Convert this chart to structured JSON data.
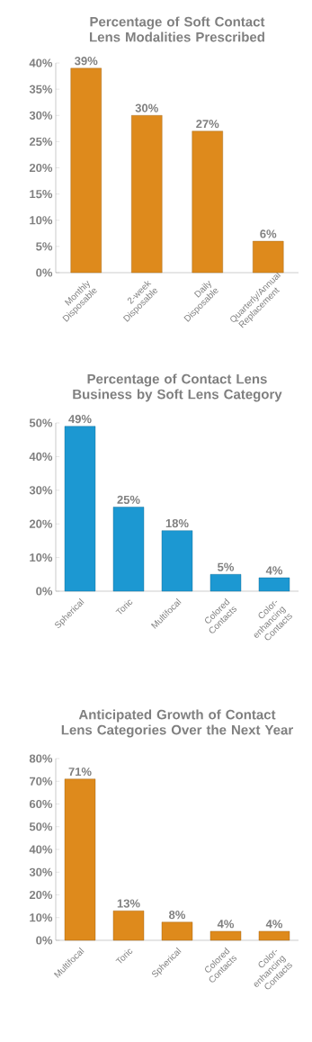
{
  "chart_data": [
    {
      "type": "bar",
      "title": "Percentage of Soft Contact Lens Modalities Prescribed",
      "categories": [
        "Monthly Disposable",
        "2-week Disposable",
        "Daily Disposable",
        "Quarterly/Annual Replacement"
      ],
      "values": [
        39,
        30,
        27,
        6
      ],
      "value_labels": [
        "39%",
        "30%",
        "27%",
        "6%"
      ],
      "color": "#de8a1c",
      "ylim": [
        0,
        40
      ],
      "yticks": [
        {
          "value": 0,
          "label": "0%"
        },
        {
          "value": 5,
          "label": "5%"
        },
        {
          "value": 10,
          "label": "10%"
        },
        {
          "value": 15,
          "label": "15%"
        },
        {
          "value": 20,
          "label": "20%"
        },
        {
          "value": 25,
          "label": "25%"
        },
        {
          "value": 30,
          "label": "30%"
        },
        {
          "value": 35,
          "label": "35%"
        },
        {
          "value": 40,
          "label": "40%"
        }
      ]
    },
    {
      "type": "bar",
      "title": "Percentage of Contact Lens Business by Soft Lens Category",
      "categories": [
        "Spherical",
        "Toric",
        "Multifocal",
        "Colored Contacts",
        "Color-enhancing Contacts"
      ],
      "values": [
        49,
        25,
        18,
        5,
        4
      ],
      "value_labels": [
        "49%",
        "25%",
        "18%",
        "5%",
        "4%"
      ],
      "color": "#1c98d2",
      "ylim": [
        0,
        50
      ],
      "yticks": [
        {
          "value": 0,
          "label": "0%"
        },
        {
          "value": 10,
          "label": "10%"
        },
        {
          "value": 20,
          "label": "20%"
        },
        {
          "value": 30,
          "label": "30%"
        },
        {
          "value": 40,
          "label": "40%"
        },
        {
          "value": 50,
          "label": "50%"
        }
      ]
    },
    {
      "type": "bar",
      "title": "Anticipated Growth of Contact Lens Categories Over the Next Year",
      "categories": [
        "Multifocal",
        "Toric",
        "Spherical",
        "Colored Contacts",
        "Color-enhancing Contacts"
      ],
      "values": [
        71,
        13,
        8,
        4,
        4
      ],
      "value_labels": [
        "71%",
        "13%",
        "8%",
        "4%",
        "4%"
      ],
      "color": "#de8a1c",
      "ylim": [
        0,
        80
      ],
      "yticks": [
        {
          "value": 0,
          "label": "0%"
        },
        {
          "value": 10,
          "label": "10%"
        },
        {
          "value": 20,
          "label": "20%"
        },
        {
          "value": 30,
          "label": "30%"
        },
        {
          "value": 40,
          "label": "40%"
        },
        {
          "value": 50,
          "label": "50%"
        },
        {
          "value": 60,
          "label": "60%"
        },
        {
          "value": 70,
          "label": "70%"
        },
        {
          "value": 80,
          "label": "80%"
        }
      ]
    }
  ]
}
